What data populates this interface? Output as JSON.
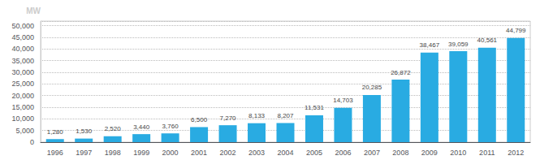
{
  "chart_data": {
    "type": "bar",
    "ylabel": "MW",
    "categories": [
      "1996",
      "1997",
      "1998",
      "1999",
      "2000",
      "2001",
      "2002",
      "2003",
      "2004",
      "2005",
      "2006",
      "2007",
      "2008",
      "2009",
      "2010",
      "2011",
      "2012"
    ],
    "values": [
      1280,
      1530,
      2520,
      3440,
      3760,
      6500,
      7270,
      8133,
      8207,
      11531,
      14703,
      20285,
      26872,
      38467,
      39059,
      40561,
      44799
    ],
    "value_labels": [
      "1,280",
      "1,530",
      "2,520",
      "3,440",
      "3,760",
      "6,500",
      "7,270",
      "8,133",
      "8,207",
      "11,531",
      "14,703",
      "20,285",
      "26,872",
      "38,467",
      "39,059",
      "40,561",
      "44,799"
    ],
    "data_labels": true,
    "color": "#29abe2",
    "ylim": [
      0,
      52000
    ],
    "yticks": [
      0,
      {
        "value": 5000,
        "label": "5,000"
      },
      {
        "value": 10000,
        "label": "10,000"
      },
      {
        "value": 15000,
        "label": "15,000"
      },
      {
        "value": 20000,
        "label": "20,000"
      },
      {
        "value": 25000,
        "label": "25,000"
      },
      {
        "value": 30000,
        "label": "30,000"
      },
      {
        "value": 35000,
        "label": "35,000"
      },
      {
        "value": 40000,
        "label": "40,000"
      },
      {
        "value": 45000,
        "label": "45,000"
      },
      {
        "value": 50000,
        "label": "50,000"
      }
    ],
    "grid": true
  }
}
